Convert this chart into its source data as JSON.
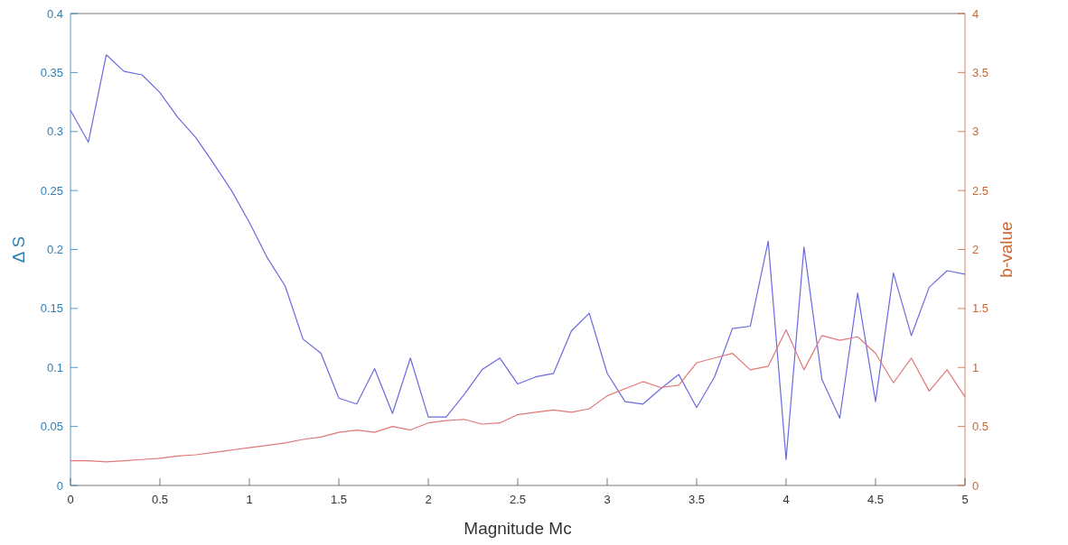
{
  "chart_data": {
    "type": "line",
    "xlabel": "Magnitude Mc",
    "ylabel": "Δ S",
    "y2label": "b-value",
    "x": [
      0,
      0.1,
      0.2,
      0.3,
      0.4,
      0.5,
      0.6,
      0.7,
      0.8,
      0.9,
      1,
      1.1,
      1.2,
      1.3,
      1.4,
      1.5,
      1.6,
      1.7,
      1.8,
      1.9,
      2,
      2.1,
      2.2,
      2.3,
      2.4,
      2.5,
      2.6,
      2.7,
      2.8,
      2.9,
      3,
      3.1,
      3.2,
      3.3,
      3.4,
      3.5,
      3.6,
      3.7,
      3.8,
      3.9,
      4,
      4.1,
      4.2,
      4.3,
      4.4,
      4.5,
      4.6,
      4.7,
      4.8,
      4.9,
      5
    ],
    "series": [
      {
        "color": "#6a6ae0",
        "values": [
          0.318,
          0.291,
          0.365,
          0.351,
          0.348,
          0.333,
          0.312,
          0.295,
          0.273,
          0.25,
          0.223,
          0.193,
          0.169,
          0.124,
          0.112,
          0.074,
          0.069,
          0.099,
          0.061,
          0.108,
          0.058,
          0.058,
          0.077,
          0.098,
          0.108,
          0.086,
          0.092,
          0.095,
          0.131,
          0.146,
          0.095,
          0.071,
          0.069,
          0.082,
          0.094,
          0.066,
          0.092,
          0.133,
          0.135,
          0.207,
          0.022,
          0.202,
          0.09,
          0.057,
          0.163,
          0.071,
          0.18,
          0.127,
          0.168,
          0.182,
          0.179
        ]
      },
      {
        "color": "#e07878",
        "axis": "y2",
        "values": [
          0.21,
          0.21,
          0.2,
          0.21,
          0.22,
          0.23,
          0.25,
          0.26,
          0.28,
          0.3,
          0.32,
          0.34,
          0.36,
          0.39,
          0.41,
          0.45,
          0.47,
          0.45,
          0.5,
          0.47,
          0.53,
          0.55,
          0.56,
          0.52,
          0.53,
          0.6,
          0.62,
          0.64,
          0.62,
          0.65,
          0.76,
          0.82,
          0.88,
          0.83,
          0.85,
          1.04,
          1.08,
          1.12,
          0.98,
          1.01,
          1.32,
          0.98,
          1.27,
          1.23,
          1.26,
          1.12,
          0.87,
          1.08,
          0.8,
          0.98,
          0.75
        ]
      }
    ],
    "xlim": [
      0,
      5
    ],
    "xticks": [
      0,
      0.5,
      1,
      1.5,
      2,
      2.5,
      3,
      3.5,
      4,
      4.5,
      5
    ],
    "ylim": [
      0,
      0.4
    ],
    "yticks": [
      0,
      0.05,
      0.1,
      0.15,
      0.2,
      0.25,
      0.3,
      0.35,
      0.4
    ],
    "y2lim": [
      0,
      4
    ],
    "y2ticks": [
      0,
      0.5,
      1,
      1.5,
      2,
      2.5,
      3,
      3.5,
      4
    ],
    "grid": false
  }
}
